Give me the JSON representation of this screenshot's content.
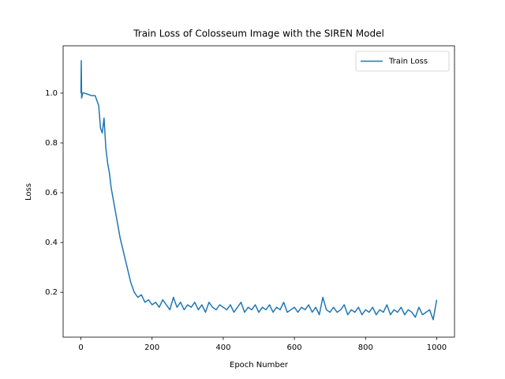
{
  "chart_data": {
    "type": "line",
    "title": "Train Loss of Colosseum Image with the SIREN Model",
    "x_label": "Epoch Number",
    "y_label": "Loss",
    "x": [
      0,
      1,
      2,
      5,
      10,
      20,
      30,
      40,
      50,
      55,
      60,
      65,
      70,
      75,
      80,
      85,
      90,
      100,
      110,
      120,
      130,
      140,
      150,
      160,
      170,
      180,
      190,
      200,
      210,
      220,
      230,
      240,
      250,
      260,
      270,
      280,
      290,
      300,
      310,
      320,
      330,
      340,
      350,
      360,
      370,
      380,
      390,
      400,
      410,
      420,
      430,
      440,
      450,
      460,
      470,
      480,
      490,
      500,
      510,
      520,
      530,
      540,
      550,
      560,
      570,
      580,
      590,
      600,
      610,
      620,
      630,
      640,
      650,
      660,
      670,
      680,
      690,
      700,
      710,
      720,
      730,
      740,
      750,
      760,
      770,
      780,
      790,
      800,
      810,
      820,
      830,
      840,
      850,
      860,
      870,
      880,
      890,
      900,
      910,
      920,
      930,
      940,
      950,
      960,
      970,
      980,
      990,
      1000
    ],
    "series": [
      {
        "name": "Train Loss",
        "color": "#1f77b4",
        "values": [
          1.0,
          1.13,
          0.98,
          1.0,
          1.0,
          0.995,
          0.99,
          0.99,
          0.95,
          0.86,
          0.84,
          0.9,
          0.78,
          0.72,
          0.68,
          0.62,
          0.58,
          0.5,
          0.42,
          0.36,
          0.3,
          0.24,
          0.2,
          0.18,
          0.19,
          0.16,
          0.17,
          0.15,
          0.16,
          0.14,
          0.17,
          0.15,
          0.13,
          0.18,
          0.14,
          0.16,
          0.13,
          0.15,
          0.14,
          0.16,
          0.13,
          0.15,
          0.12,
          0.16,
          0.14,
          0.13,
          0.15,
          0.14,
          0.13,
          0.15,
          0.12,
          0.14,
          0.16,
          0.12,
          0.14,
          0.13,
          0.15,
          0.12,
          0.14,
          0.13,
          0.15,
          0.12,
          0.14,
          0.13,
          0.16,
          0.12,
          0.13,
          0.14,
          0.12,
          0.14,
          0.13,
          0.15,
          0.12,
          0.14,
          0.11,
          0.18,
          0.13,
          0.12,
          0.14,
          0.12,
          0.13,
          0.15,
          0.11,
          0.13,
          0.12,
          0.14,
          0.11,
          0.13,
          0.12,
          0.14,
          0.11,
          0.13,
          0.12,
          0.15,
          0.11,
          0.13,
          0.12,
          0.14,
          0.11,
          0.13,
          0.12,
          0.1,
          0.14,
          0.11,
          0.12,
          0.13,
          0.09,
          0.17
        ]
      }
    ],
    "xlim": [
      -50,
      1050
    ],
    "xticks": [
      0,
      200,
      400,
      600,
      800,
      1000
    ],
    "ylim": [
      0.02,
      1.19
    ],
    "yticks": [
      0.2,
      0.4,
      0.6,
      0.8,
      {
        "value": 1,
        "label": "1.0"
      }
    ],
    "legend": "upper right"
  }
}
